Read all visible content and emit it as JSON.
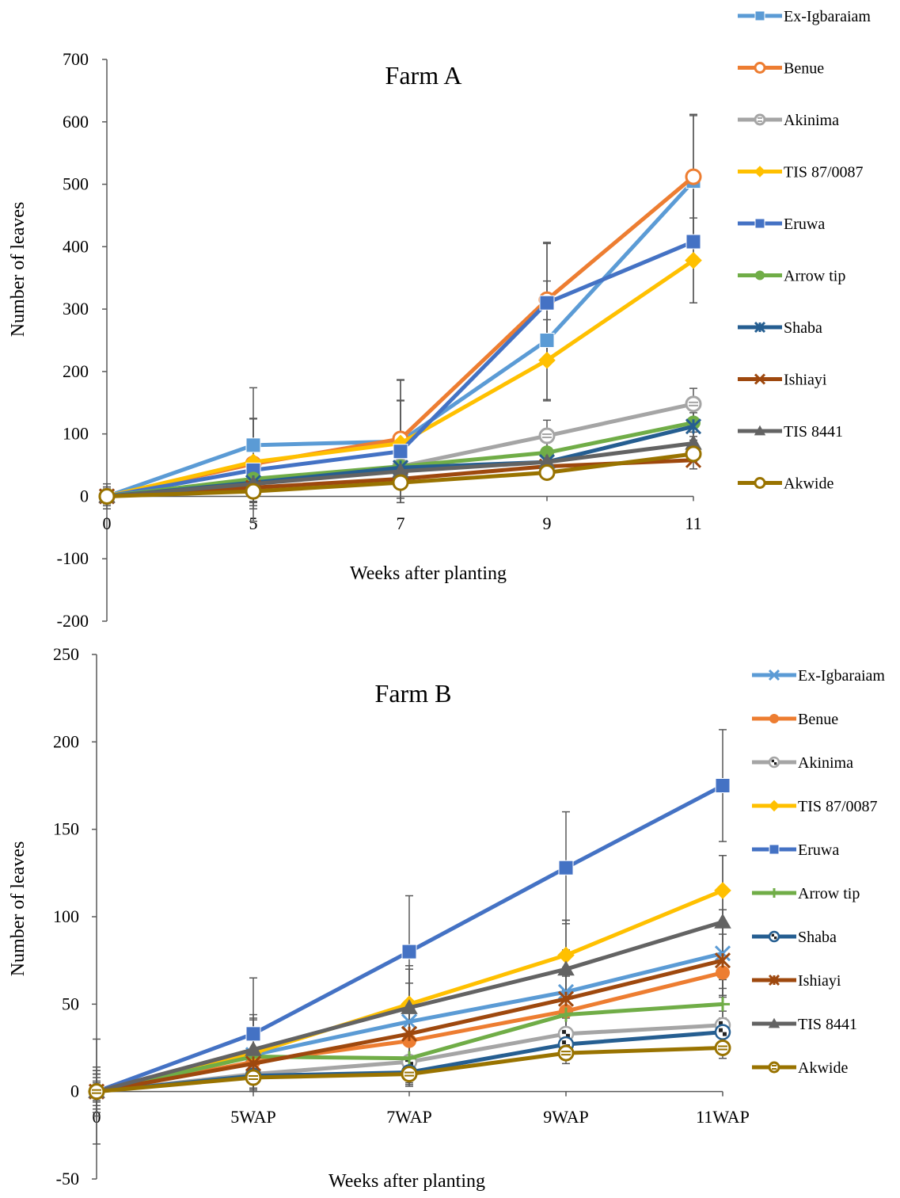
{
  "chart_data": [
    {
      "type": "line",
      "title": "Farm A",
      "xlabel": "Weeks after planting",
      "ylabel": "Number of leaves",
      "categories": [
        "0",
        "5",
        "7",
        "9",
        "11"
      ],
      "ylim": [
        -200,
        700
      ],
      "yticks": [
        "700",
        "600",
        "500",
        "400",
        "300",
        "200",
        "100",
        "0",
        "-100",
        "-200"
      ],
      "grid": false,
      "legend_position": "right",
      "error_bars": true,
      "series": [
        {
          "name": "Ex-Igbaraiam",
          "color": "#5B9BD5",
          "marker": "square",
          "values": [
            0,
            82,
            88,
            250,
            505
          ],
          "errors": [
            20,
            92,
            98,
            95,
            105
          ]
        },
        {
          "name": "Benue",
          "color": "#ED7D31",
          "marker": "circle-open",
          "values": [
            0,
            52,
            92,
            315,
            512
          ],
          "errors": [
            15,
            72,
            95,
            92,
            100
          ]
        },
        {
          "name": "Akinima",
          "color": "#A5A5A5",
          "marker": "circle-striped",
          "values": [
            0,
            22,
            48,
            97,
            148
          ],
          "errors": [
            10,
            30,
            30,
            25,
            25
          ]
        },
        {
          "name": "TIS 87/0087",
          "color": "#FFC000",
          "marker": "diamond",
          "values": [
            0,
            55,
            85,
            218,
            378
          ],
          "errors": [
            15,
            70,
            68,
            65,
            68
          ]
        },
        {
          "name": "Eruwa",
          "color": "#4472C4",
          "marker": "square",
          "values": [
            0,
            42,
            72,
            310,
            408
          ],
          "errors": [
            12,
            82,
            82,
            95,
            98
          ]
        },
        {
          "name": "Arrow tip",
          "color": "#70AD47",
          "marker": "circle",
          "values": [
            0,
            28,
            48,
            70,
            118
          ],
          "errors": [
            8,
            22,
            20,
            20,
            22
          ]
        },
        {
          "name": "Shaba",
          "color": "#255E91",
          "marker": "star",
          "values": [
            0,
            22,
            46,
            55,
            112
          ],
          "errors": [
            8,
            18,
            18,
            18,
            22
          ]
        },
        {
          "name": "Ishiayi",
          "color": "#9E480E",
          "marker": "x",
          "values": [
            0,
            14,
            28,
            48,
            58
          ],
          "errors": [
            6,
            12,
            12,
            12,
            14
          ]
        },
        {
          "name": "TIS 8441",
          "color": "#636363",
          "marker": "triangle",
          "values": [
            0,
            20,
            40,
            55,
            85
          ],
          "errors": [
            8,
            16,
            16,
            16,
            18
          ]
        },
        {
          "name": "Akwide",
          "color": "#997300",
          "marker": "circle-open",
          "values": [
            0,
            8,
            22,
            38,
            68
          ],
          "errors": [
            5,
            10,
            10,
            10,
            12
          ]
        }
      ]
    },
    {
      "type": "line",
      "title": "Farm B",
      "xlabel": "Weeks after planting",
      "ylabel": "Number of leaves",
      "categories": [
        "0",
        "5WAP",
        "7WAP",
        "9WAP",
        "11WAP"
      ],
      "ylim": [
        -50,
        250
      ],
      "yticks": [
        "250",
        "200",
        "150",
        "100",
        "50",
        "0",
        "-50"
      ],
      "grid": false,
      "legend_position": "right",
      "error_bars": true,
      "series": [
        {
          "name": "Ex-Igbaraiam",
          "color": "#5B9BD5",
          "marker": "x",
          "values": [
            0,
            21,
            40,
            57,
            79
          ],
          "errors": [
            12,
            20,
            22,
            24,
            25
          ]
        },
        {
          "name": "Benue",
          "color": "#ED7D31",
          "marker": "circle",
          "values": [
            0,
            17,
            29,
            46,
            68
          ],
          "errors": [
            10,
            16,
            18,
            20,
            22
          ]
        },
        {
          "name": "Akinima",
          "color": "#A5A5A5",
          "marker": "circle-pattern",
          "values": [
            0,
            10,
            17,
            33,
            38
          ],
          "errors": [
            8,
            10,
            10,
            10,
            12
          ]
        },
        {
          "name": "TIS 87/0087",
          "color": "#FFC000",
          "marker": "diamond",
          "values": [
            0,
            22,
            50,
            78,
            115
          ],
          "errors": [
            12,
            20,
            22,
            20,
            20
          ]
        },
        {
          "name": "Eruwa",
          "color": "#4472C4",
          "marker": "square",
          "values": [
            0,
            33,
            80,
            128,
            175
          ],
          "errors": [
            30,
            32,
            32,
            32,
            32
          ]
        },
        {
          "name": "Arrow tip",
          "color": "#70AD47",
          "marker": "plus",
          "values": [
            0,
            20,
            19,
            44,
            50
          ],
          "errors": [
            10,
            14,
            14,
            14,
            14
          ]
        },
        {
          "name": "Shaba",
          "color": "#255E91",
          "marker": "circle-pattern",
          "values": [
            0,
            9,
            11,
            27,
            34
          ],
          "errors": [
            6,
            8,
            8,
            8,
            8
          ]
        },
        {
          "name": "Ishiayi",
          "color": "#9E480E",
          "marker": "star",
          "values": [
            0,
            16,
            33,
            53,
            75
          ],
          "errors": [
            10,
            14,
            16,
            18,
            20
          ]
        },
        {
          "name": "TIS 8441",
          "color": "#636363",
          "marker": "triangle",
          "values": [
            0,
            24,
            48,
            70,
            97
          ],
          "errors": [
            14,
            20,
            22,
            28,
            38
          ]
        },
        {
          "name": "Akwide",
          "color": "#997300",
          "marker": "circle-striped",
          "values": [
            0,
            8,
            10,
            22,
            25
          ],
          "errors": [
            5,
            6,
            6,
            6,
            6
          ]
        }
      ]
    }
  ]
}
